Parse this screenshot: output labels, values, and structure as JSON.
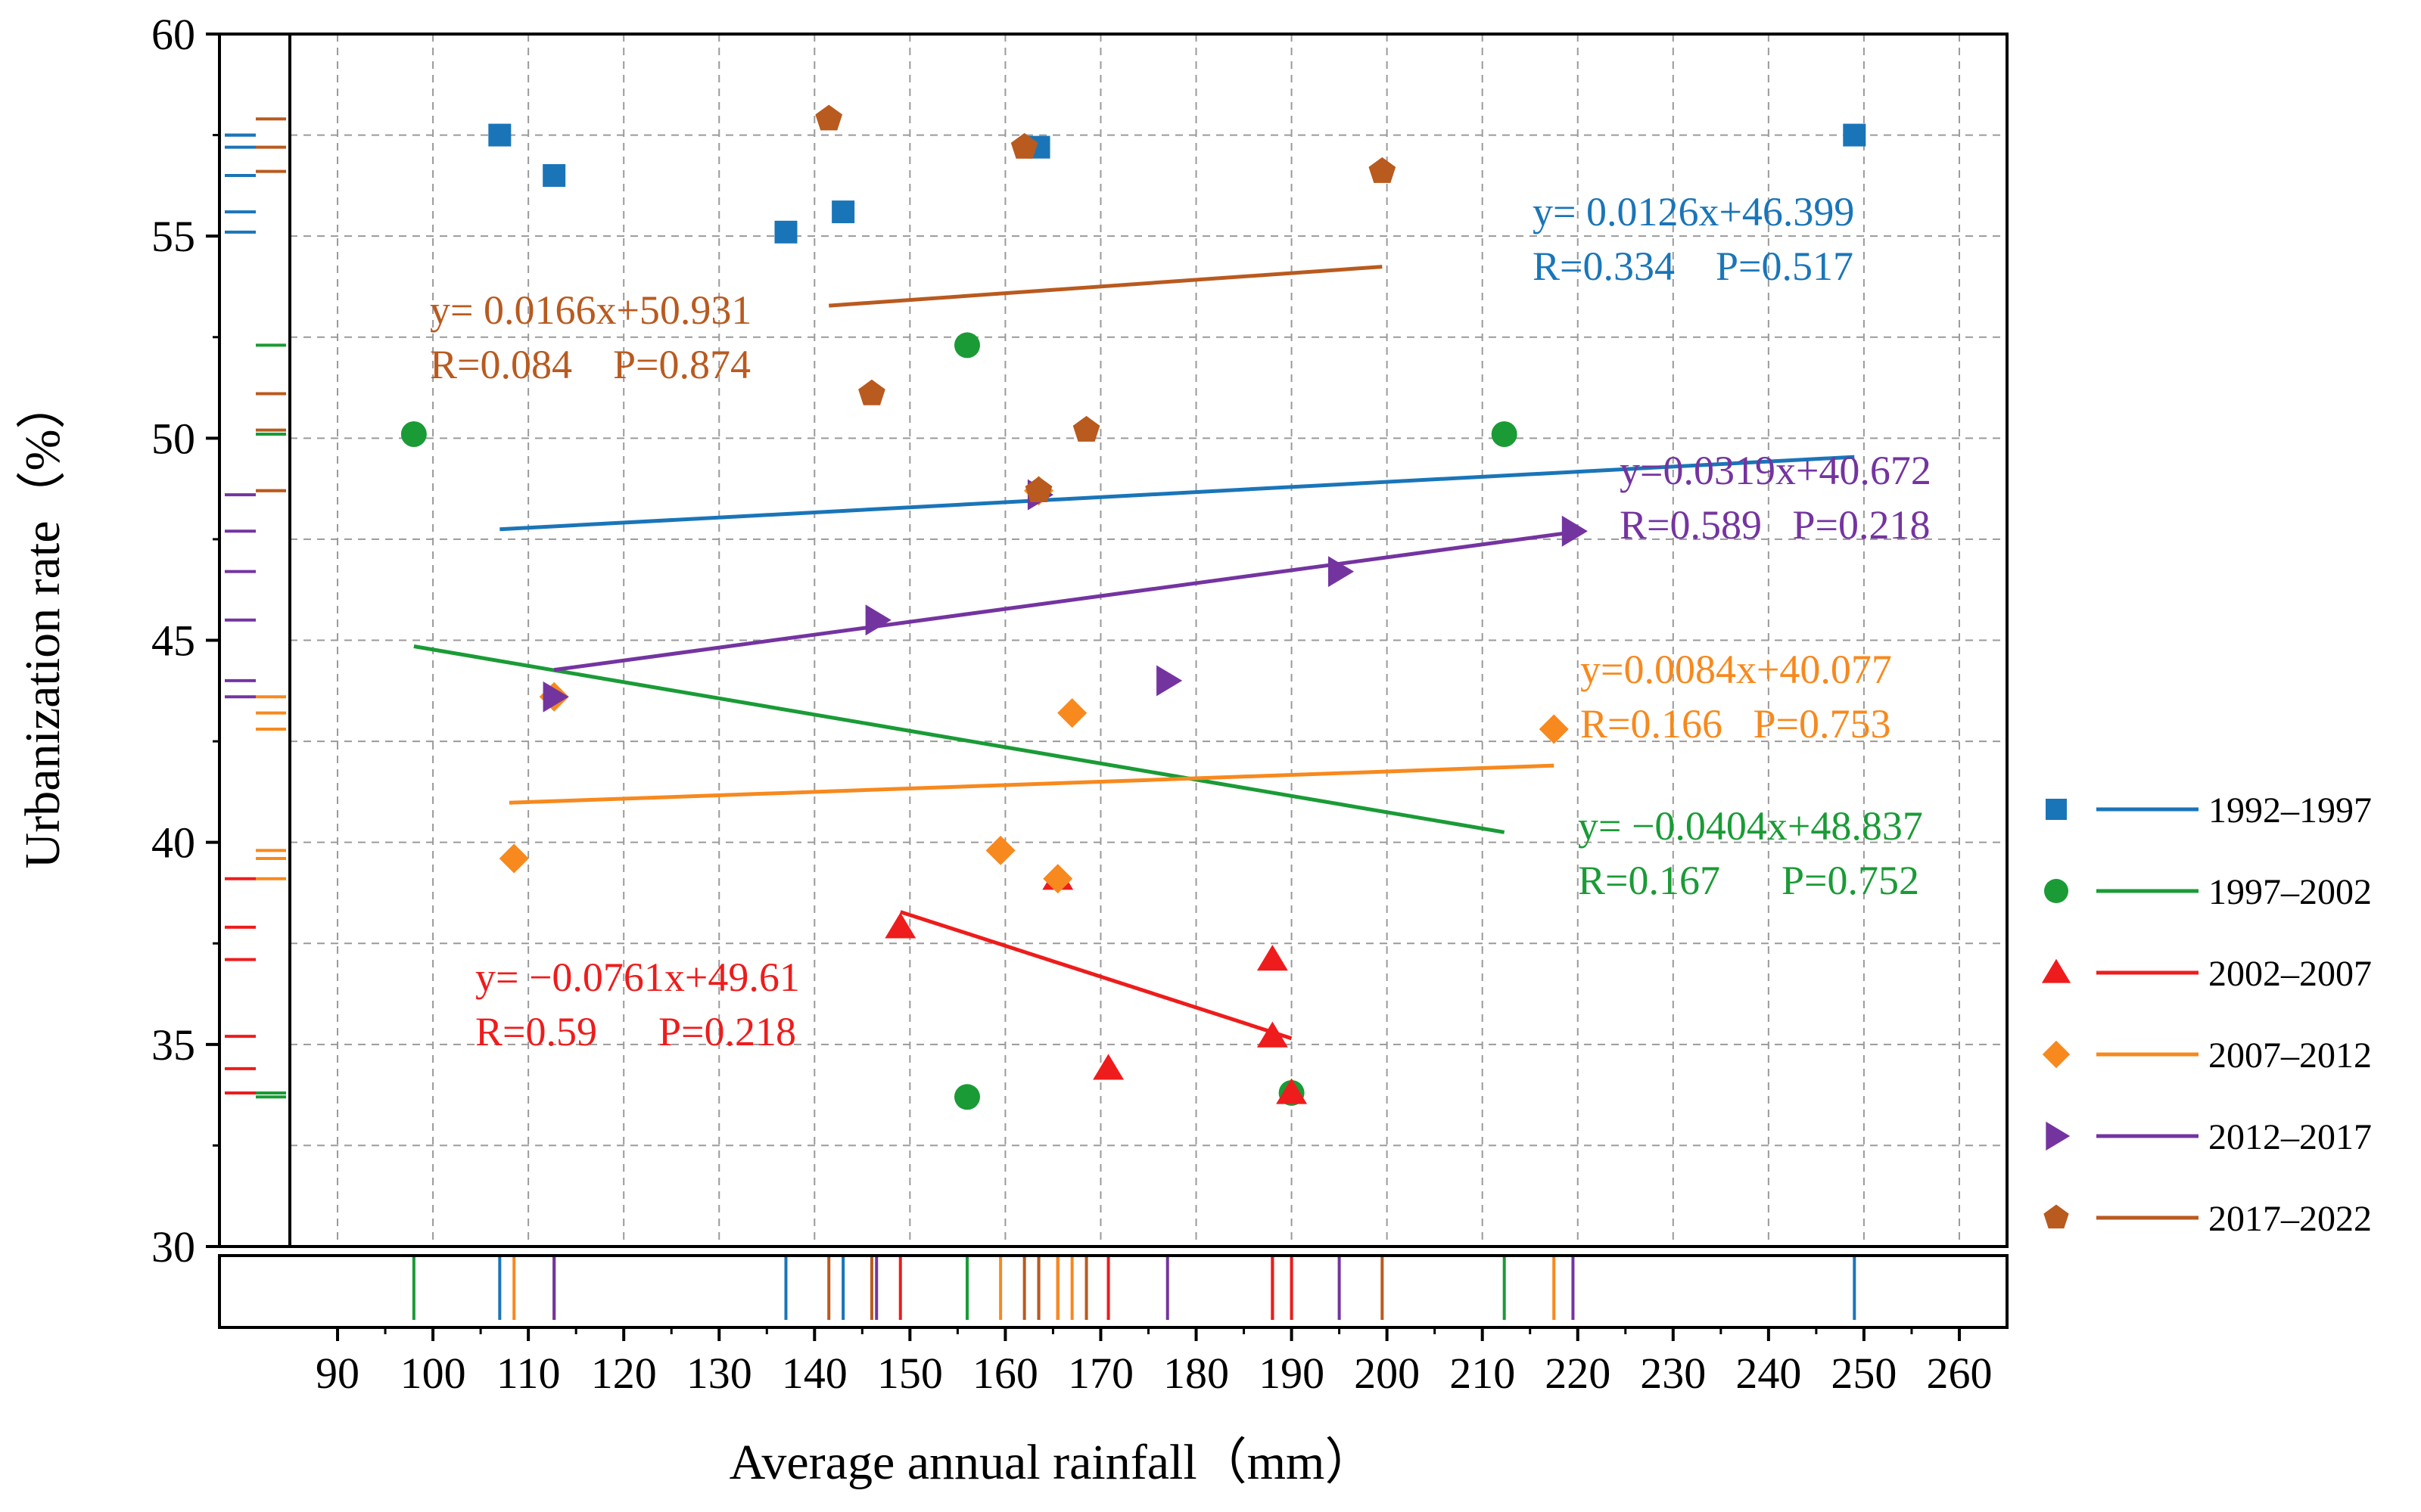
{
  "chart_data": {
    "type": "scatter",
    "xlabel": "Average annual rainfall（mm）",
    "ylabel": "Urbanization rate（%）",
    "xlim": [
      85,
      265
    ],
    "ylim": [
      30,
      60
    ],
    "x_ticks": [
      90,
      100,
      110,
      120,
      130,
      140,
      150,
      160,
      170,
      180,
      190,
      200,
      210,
      220,
      230,
      240,
      250,
      260
    ],
    "y_ticks": [
      30,
      35,
      40,
      45,
      50,
      55,
      60
    ],
    "grid": true,
    "marginal_rugs": true,
    "legend_position": "right",
    "series": [
      {
        "name": "1992–1997",
        "color": "#1a75b8",
        "marker": "square",
        "points": [
          [
            107,
            57.5
          ],
          [
            112.7,
            56.5
          ],
          [
            137,
            55.1
          ],
          [
            143,
            55.6
          ],
          [
            163.5,
            57.2
          ],
          [
            249,
            57.5
          ]
        ],
        "fit_range": [
          107,
          249
        ],
        "equation": "y= 0.0126x+46.399",
        "stats": "R=0.334    P=0.517"
      },
      {
        "name": "1997–2002",
        "color": "#1a9b36",
        "marker": "circle",
        "points": [
          [
            98,
            50.1
          ],
          [
            156,
            52.3
          ],
          [
            212.3,
            50.1
          ],
          [
            156,
            33.7
          ],
          [
            190,
            33.8
          ]
        ],
        "fit_range": [
          98,
          212.3
        ],
        "fit_line": [
          [
            98,
            44.85
          ],
          [
            212.3,
            40.25
          ]
        ],
        "equation": "y= −0.0404x+48.837",
        "stats": "R=0.167      P=0.752"
      },
      {
        "name": "2002–2007",
        "color": "#ee1c1c",
        "marker": "triangle",
        "points": [
          [
            149,
            37.9
          ],
          [
            188,
            37.1
          ],
          [
            188,
            35.2
          ],
          [
            170.8,
            34.4
          ],
          [
            190,
            33.8
          ],
          [
            165.5,
            39.1
          ]
        ],
        "fit_range": [
          149,
          190
        ],
        "fit_line": [
          [
            149,
            38.28
          ],
          [
            190,
            35.15
          ]
        ],
        "equation": "y= −0.0761x+49.61",
        "stats": "R=0.59      P=0.218"
      },
      {
        "name": "2007–2012",
        "color": "#f7891e",
        "marker": "diamond",
        "points": [
          [
            108.5,
            39.6
          ],
          [
            112.7,
            43.6
          ],
          [
            159.5,
            39.8
          ],
          [
            165.5,
            39.1
          ],
          [
            167,
            43.2
          ],
          [
            217.5,
            42.8
          ],
          [
            163.5,
            48.7
          ]
        ],
        "fit_range": [
          108,
          217.5
        ],
        "fit_line": [
          [
            108,
            40.98
          ],
          [
            217.5,
            41.9
          ]
        ],
        "equation": "y=0.0084x+40.077",
        "stats": "R=0.166   P=0.753"
      },
      {
        "name": "2012–2017",
        "color": "#7434a0",
        "marker": "triangle-right",
        "points": [
          [
            112.7,
            43.6
          ],
          [
            146.5,
            45.5
          ],
          [
            163.5,
            48.6
          ],
          [
            177,
            44
          ],
          [
            195,
            46.7
          ],
          [
            219.5,
            47.7
          ]
        ],
        "fit_range": [
          112.7,
          219.5
        ],
        "equation": "y=0.0319x+40.672",
        "stats": "R=0.589   P=0.218"
      },
      {
        "name": "2017–2022",
        "color": "#b95a1f",
        "marker": "pentagon",
        "points": [
          [
            141.5,
            57.9
          ],
          [
            162,
            57.2
          ],
          [
            199.5,
            56.6
          ],
          [
            146,
            51.1
          ],
          [
            168.5,
            50.2
          ],
          [
            163.5,
            48.7
          ]
        ],
        "fit_range": [
          141.5,
          199.5
        ],
        "equation": "y= 0.0166x+50.931",
        "stats": "R=0.084    P=0.874"
      }
    ]
  }
}
